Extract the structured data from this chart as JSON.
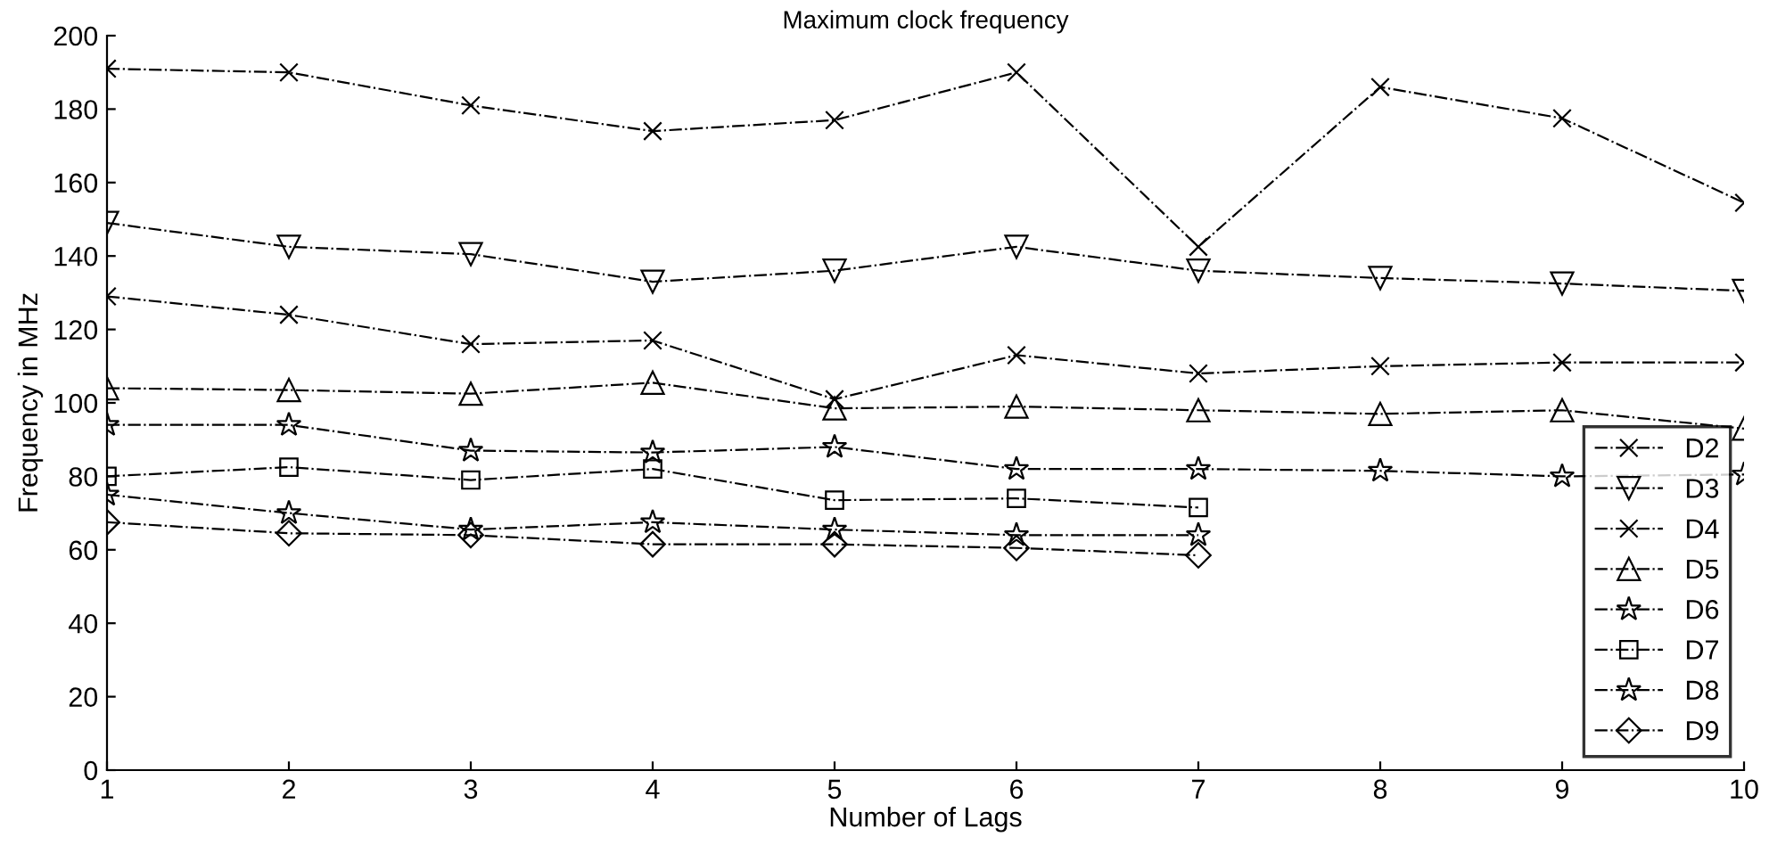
{
  "chart_data": {
    "type": "line",
    "title": "Maximum clock frequency",
    "xlabel": "Number of Lags",
    "ylabel": "Frequency in MHz",
    "xlim": [
      1,
      10
    ],
    "xticks": [
      1,
      2,
      3,
      4,
      5,
      6,
      7,
      8,
      9,
      10
    ],
    "ylim": [
      0,
      200
    ],
    "yticks": [
      0,
      20,
      40,
      60,
      80,
      100,
      120,
      140,
      160,
      180,
      200
    ],
    "grid": false,
    "legend": "bottom right",
    "line_style": "dashdot",
    "series": [
      {
        "name": "D2",
        "color": "#000000",
        "marker": "cross",
        "x": [
          1,
          2,
          3,
          4,
          5,
          6,
          7,
          8,
          9,
          10
        ],
        "values": [
          191,
          190,
          181,
          174,
          177,
          190,
          142.5,
          186,
          177.5,
          154.5
        ]
      },
      {
        "name": "D3",
        "color": "#000000",
        "marker": "triangle_down",
        "x": [
          1,
          2,
          3,
          4,
          5,
          6,
          7,
          8,
          9,
          10
        ],
        "values": [
          149,
          142.5,
          140.5,
          133,
          136,
          142.5,
          136,
          134,
          132.5,
          130.5
        ]
      },
      {
        "name": "D4",
        "color": "#000000",
        "marker": "cross",
        "x": [
          1,
          2,
          3,
          4,
          5,
          6,
          7,
          8,
          9,
          10
        ],
        "values": [
          129,
          124,
          116,
          117,
          101,
          113,
          108,
          110,
          111,
          111
        ]
      },
      {
        "name": "D5",
        "color": "#000000",
        "marker": "triangle",
        "x": [
          1,
          2,
          3,
          4,
          5,
          6,
          7,
          8,
          9,
          10
        ],
        "values": [
          104,
          103.5,
          102.5,
          105.5,
          98.5,
          99,
          98,
          97,
          98,
          93
        ]
      },
      {
        "name": "D6",
        "color": "#000000",
        "marker": "star",
        "x": [
          1,
          2,
          3,
          4,
          5,
          6,
          7,
          8,
          9,
          10
        ],
        "values": [
          94,
          94,
          87,
          86.5,
          88,
          82,
          82,
          81.5,
          80,
          80.5
        ]
      },
      {
        "name": "D7",
        "color": "#000000",
        "marker": "square",
        "x": [
          1,
          2,
          3,
          4,
          5,
          6,
          7
        ],
        "values": [
          80,
          82.5,
          79,
          82,
          73.5,
          74,
          71.5
        ]
      },
      {
        "name": "D8",
        "color": "#000000",
        "marker": "star",
        "x": [
          1,
          2,
          3,
          4,
          5,
          6,
          7
        ],
        "values": [
          75,
          70,
          65.5,
          67.5,
          65.5,
          64,
          64
        ]
      },
      {
        "name": "D9",
        "color": "#000000",
        "marker": "diamond",
        "x": [
          1,
          2,
          3,
          4,
          5,
          6,
          7
        ],
        "values": [
          67.5,
          64.5,
          64,
          61.5,
          61.5,
          60.5,
          58.5
        ]
      }
    ]
  }
}
